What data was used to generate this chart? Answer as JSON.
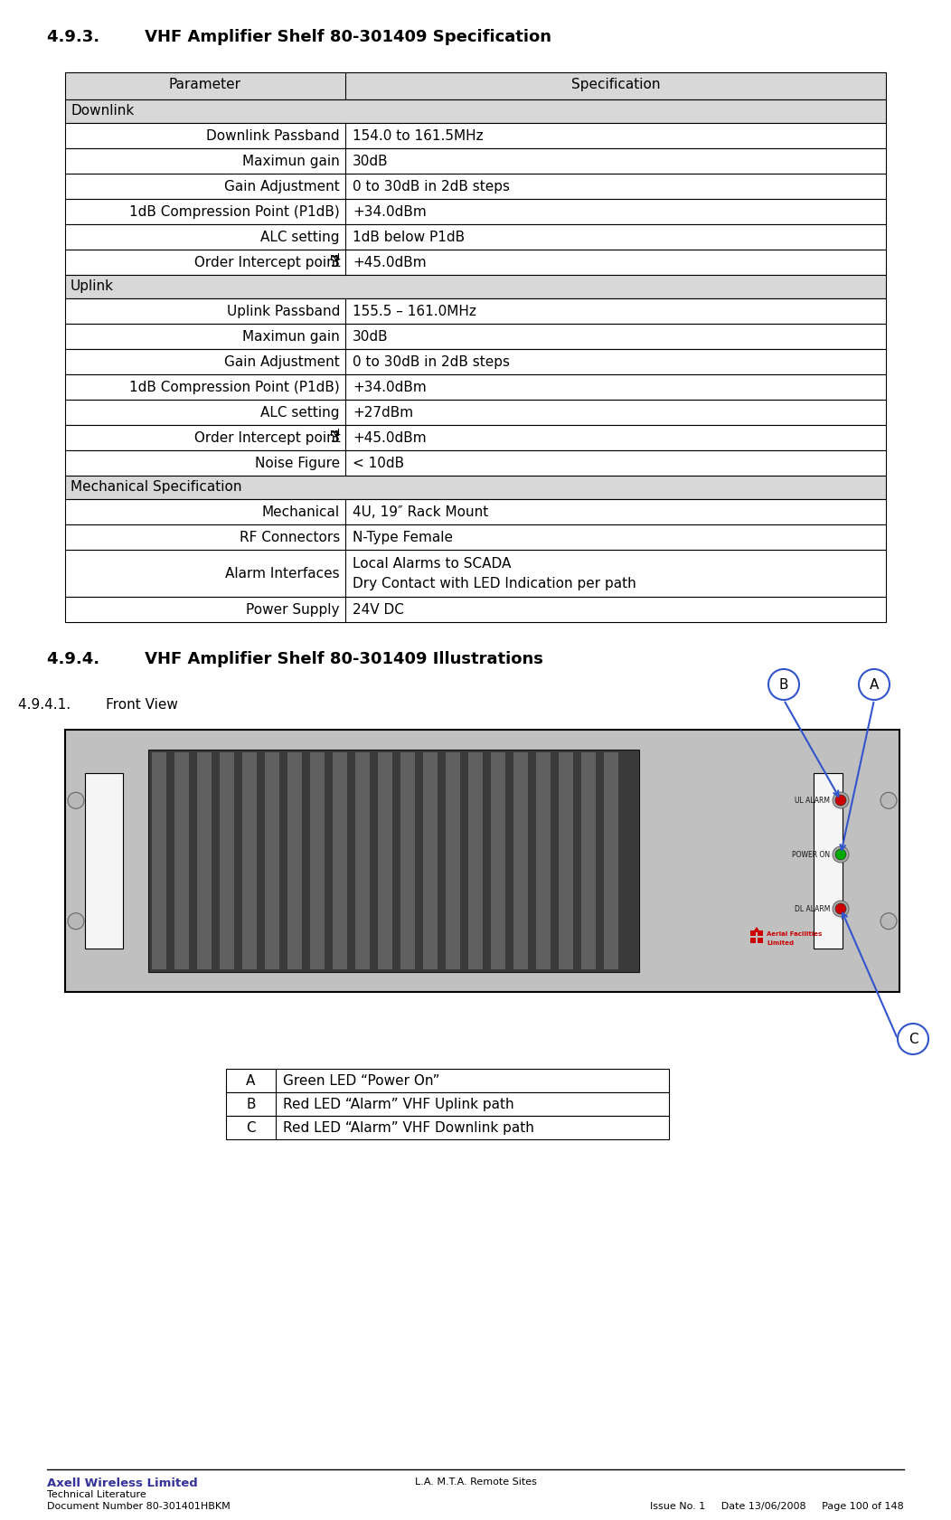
{
  "title_493": "4.9.3.        VHF Amplifier Shelf 80-301409 Specification",
  "title_494": "4.9.4.        VHF Amplifier Shelf 80-301409 Illustrations",
  "subtitle_4941": "4.9.4.1.        Front View",
  "table_headers": [
    "Parameter",
    "Specification"
  ],
  "table_rows": [
    [
      "section",
      "Downlink",
      ""
    ],
    [
      "right",
      "Downlink Passband",
      "154.0 to 161.5MHz"
    ],
    [
      "right",
      "Maximun gain",
      "30dB"
    ],
    [
      "right",
      "Gain Adjustment",
      "0 to 30dB in 2dB steps"
    ],
    [
      "right",
      "1dB Compression Point (P1dB)",
      "+34.0dBm"
    ],
    [
      "right",
      "ALC setting",
      "1dB below P1dB"
    ],
    [
      "right_3rd",
      "3rd Order Intercept point",
      "+45.0dBm"
    ],
    [
      "section",
      "Uplink",
      ""
    ],
    [
      "right",
      "Uplink Passband",
      "155.5 – 161.0MHz"
    ],
    [
      "right",
      "Maximun gain",
      "30dB"
    ],
    [
      "right",
      "Gain Adjustment",
      "0 to 30dB in 2dB steps"
    ],
    [
      "right",
      "1dB Compression Point (P1dB)",
      "+34.0dBm"
    ],
    [
      "right",
      "ALC setting",
      "+27dBm"
    ],
    [
      "right_3rd",
      "3rd Order Intercept point",
      "+45.0dBm"
    ],
    [
      "right",
      "Noise Figure",
      "< 10dB"
    ],
    [
      "section",
      "Mechanical Specification",
      ""
    ],
    [
      "right",
      "Mechanical",
      "4U, 19″ Rack Mount"
    ],
    [
      "right",
      "RF Connectors",
      "N-Type Female"
    ],
    [
      "right_tall",
      "Alarm Interfaces",
      "Local Alarms to SCADA\nDry Contact with LED Indication per path"
    ],
    [
      "right",
      "Power Supply",
      "24V DC"
    ]
  ],
  "legend_rows": [
    [
      "A",
      "Green LED “Power On”"
    ],
    [
      "B",
      "Red LED “Alarm” VHF Uplink path"
    ],
    [
      "C",
      "Red LED “Alarm” VHF Downlink path"
    ]
  ],
  "footer_left1": "Axell Wireless Limited",
  "footer_left2": "Technical Literature",
  "footer_left3": "Document Number 80-301401HBKM",
  "footer_center": "L.A. M.T.A. Remote Sites",
  "footer_right1": "Issue No. 1",
  "footer_right2": "Date 13/06/2008",
  "footer_right3": "Page 100 of 148",
  "bg_color": "#ffffff",
  "table_border_color": "#000000",
  "header_bg": "#d8d8d8",
  "row_bg": "#ffffff"
}
